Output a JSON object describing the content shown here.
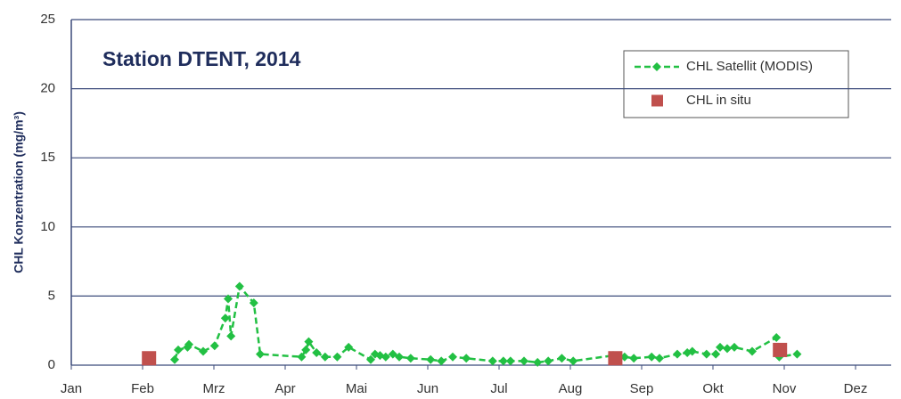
{
  "chart_data": {
    "type": "line",
    "title": "Station DTENT, 2014",
    "y_label": "CHL Konzentration (mg/m³)",
    "xlim": [
      0,
      11.5
    ],
    "xticks": [
      {
        "value": 0,
        "label": "Jan"
      },
      {
        "value": 1,
        "label": "Feb"
      },
      {
        "value": 2,
        "label": "Mrz"
      },
      {
        "value": 3,
        "label": "Apr"
      },
      {
        "value": 4,
        "label": "Mai"
      },
      {
        "value": 5,
        "label": "Jun"
      },
      {
        "value": 6,
        "label": "Jul"
      },
      {
        "value": 7,
        "label": "Aug"
      },
      {
        "value": 8,
        "label": "Sep"
      },
      {
        "value": 9,
        "label": "Okt"
      },
      {
        "value": 10,
        "label": "Nov"
      },
      {
        "value": 11,
        "label": "Dez"
      }
    ],
    "ylim": [
      0,
      25
    ],
    "yticks": [
      0,
      5,
      10,
      15,
      20,
      25
    ],
    "grid": true,
    "legend": "upper right",
    "series": [
      {
        "name": "CHL Satellit (MODIS)",
        "color": "#22c043",
        "line_style": "dashed",
        "marker": "diamond",
        "x": [
          1.45,
          1.5,
          1.63,
          1.65,
          1.85,
          2.01,
          2.16,
          2.2,
          2.24,
          2.36,
          2.56,
          2.65,
          3.23,
          3.29,
          3.33,
          3.44,
          3.56,
          3.73,
          3.89,
          4.2,
          4.26,
          4.33,
          4.41,
          4.51,
          4.6,
          4.76,
          5.04,
          5.19,
          5.35,
          5.54,
          5.91,
          6.06,
          6.16,
          6.35,
          6.54,
          6.69,
          6.88,
          7.04,
          7.6,
          7.76,
          7.89,
          8.14,
          8.25,
          8.5,
          8.64,
          8.71,
          8.91,
          9.04,
          9.1,
          9.2,
          9.3,
          9.55,
          9.89,
          9.93,
          10.18
        ],
        "values": [
          0.4,
          1.1,
          1.3,
          1.5,
          1.0,
          1.4,
          3.4,
          4.8,
          2.1,
          5.7,
          4.5,
          0.8,
          0.6,
          1.1,
          1.7,
          0.9,
          0.6,
          0.6,
          1.3,
          0.4,
          0.8,
          0.7,
          0.6,
          0.8,
          0.6,
          0.5,
          0.4,
          0.3,
          0.6,
          0.5,
          0.3,
          0.3,
          0.3,
          0.3,
          0.2,
          0.3,
          0.5,
          0.3,
          0.7,
          0.6,
          0.5,
          0.6,
          0.5,
          0.8,
          0.9,
          1.0,
          0.8,
          0.8,
          1.3,
          1.2,
          1.3,
          1.0,
          2.0,
          0.6,
          0.8
        ]
      },
      {
        "name": "CHL in situ",
        "color": "#c0504d",
        "line_style": "none",
        "marker": "square",
        "x": [
          1.09,
          7.63,
          9.94
        ],
        "values": [
          0.5,
          0.5,
          1.1
        ]
      }
    ]
  }
}
